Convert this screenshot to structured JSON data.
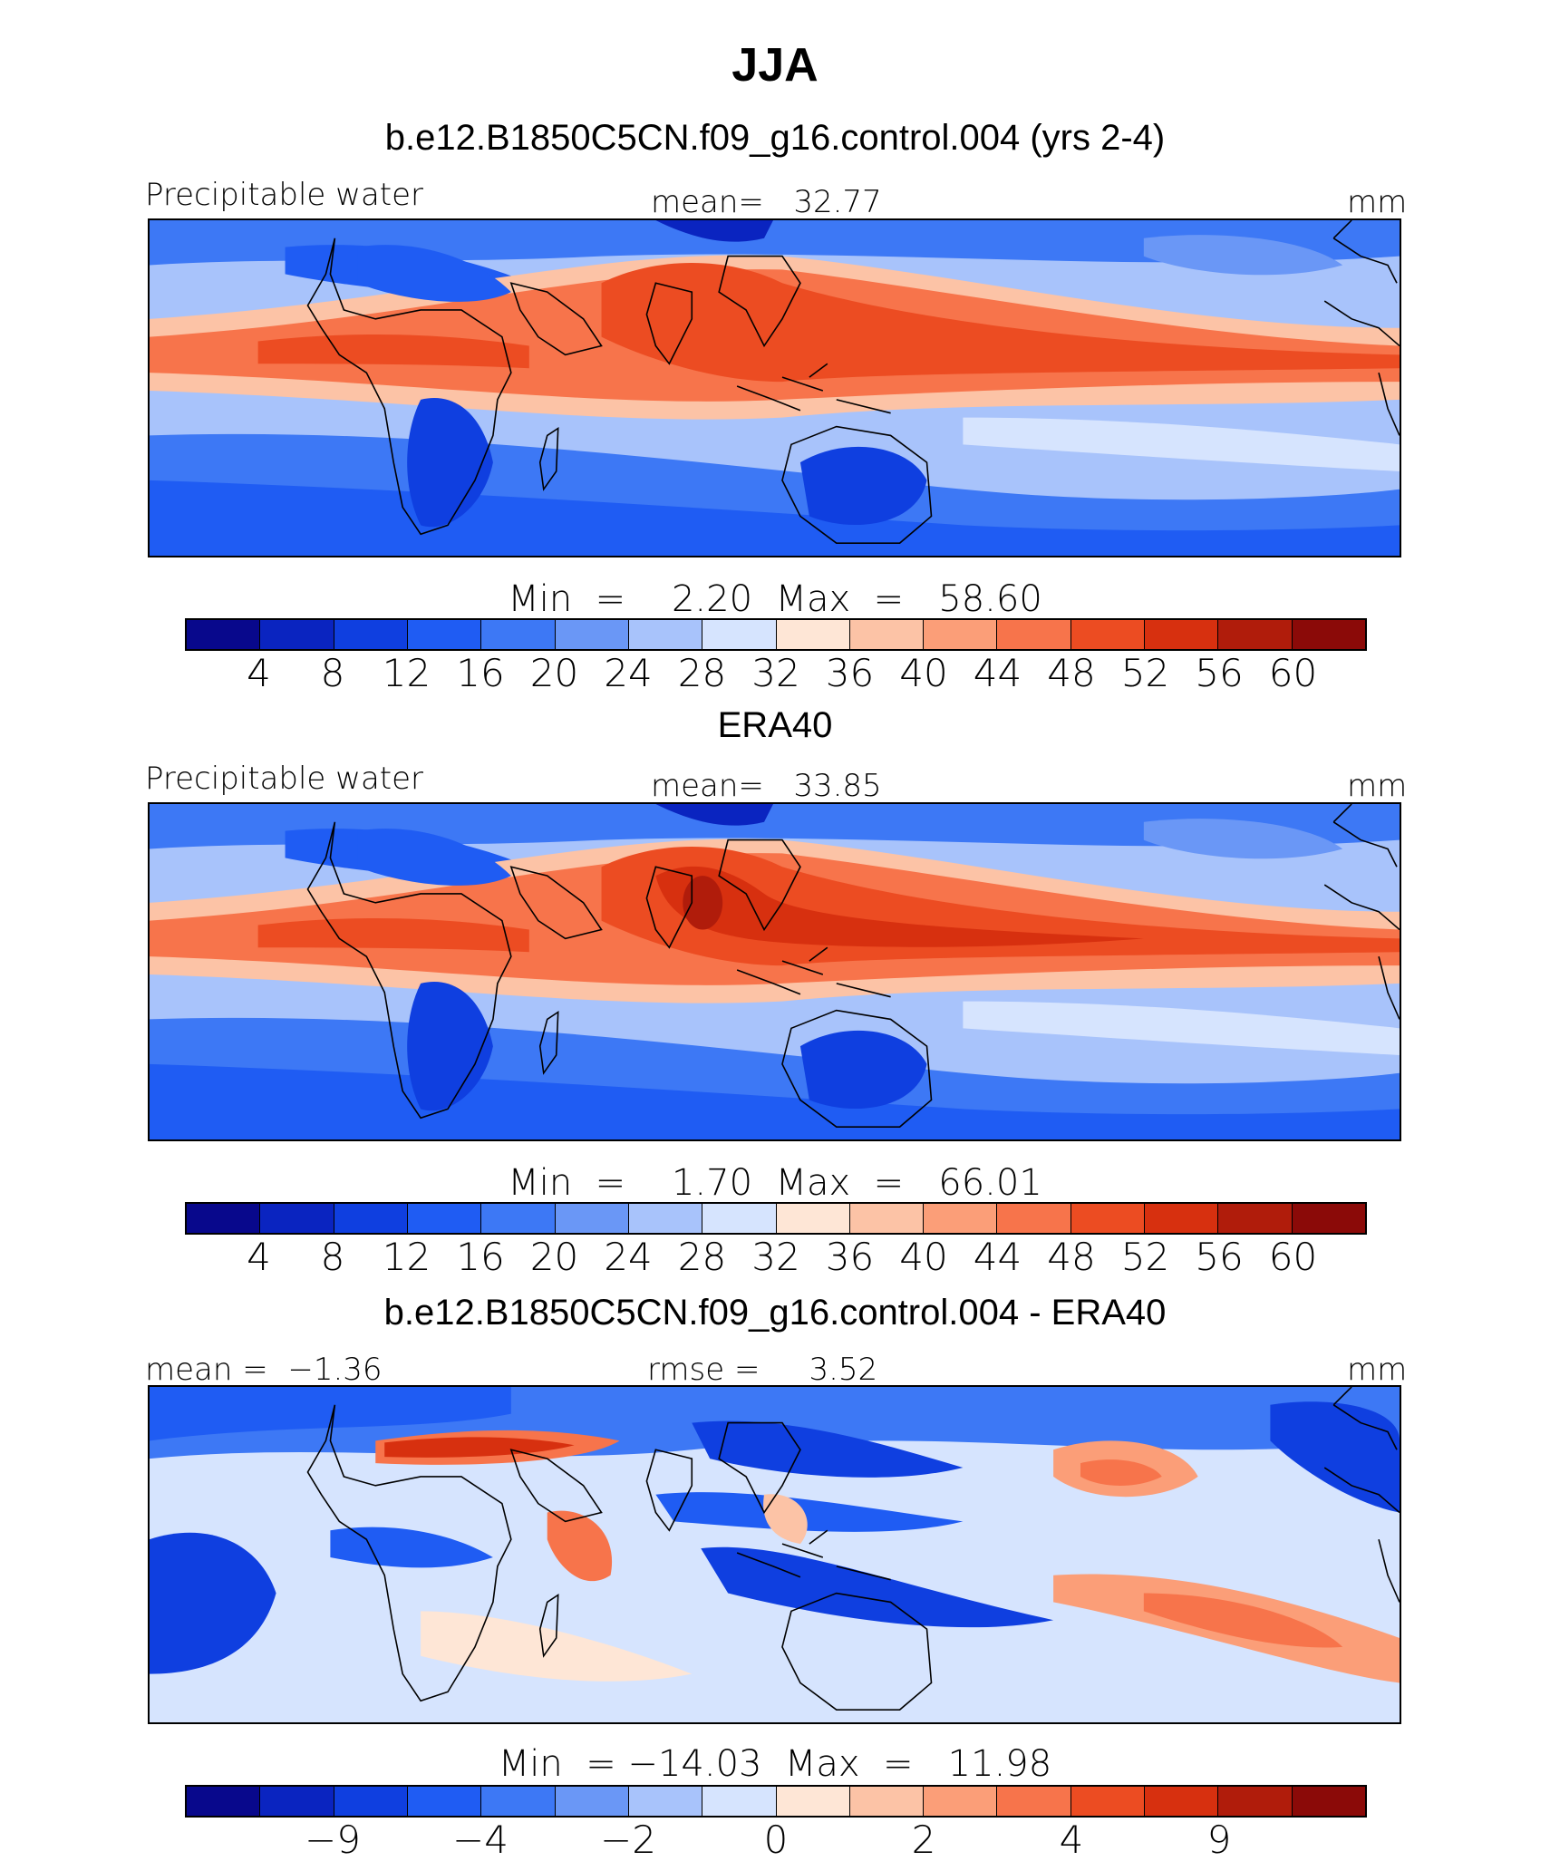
{
  "title": "JJA",
  "colors": [
    "#08088c",
    "#0a24c0",
    "#0f3fe0",
    "#1f5cf3",
    "#3d78f5",
    "#6a97f6",
    "#a8c3fb",
    "#d6e4fe",
    "#fee6d6",
    "#fcc3a6",
    "#fb9e78",
    "#f7744b",
    "#ec4c22",
    "#d7300f",
    "#b01c0b",
    "#8b0a08"
  ],
  "panels": [
    {
      "title": "b.e12.B1850C5CN.f09_g16.control.004 (yrs 2-4)",
      "left_label": "Precipitable water",
      "center_label": "mean=   32.77",
      "units": "mm",
      "minmax": "Min  =    2.20  Max  =   58.60",
      "ticks": [
        "4",
        "8",
        "12",
        "16",
        "20",
        "24",
        "28",
        "32",
        "36",
        "40",
        "44",
        "48",
        "52",
        "56",
        "60"
      ],
      "field": "model"
    },
    {
      "title": "ERA40",
      "left_label": "Precipitable water",
      "center_label": "mean=   33.85",
      "units": "mm",
      "minmax": "Min  =    1.70  Max  =   66.01",
      "ticks": [
        "4",
        "8",
        "12",
        "16",
        "20",
        "24",
        "28",
        "32",
        "36",
        "40",
        "44",
        "48",
        "52",
        "56",
        "60"
      ],
      "field": "obs"
    },
    {
      "title": "b.e12.B1850C5CN.f09_g16.control.004 - ERA40",
      "left_label": "mean =  −1.36",
      "center_label": "rmse =     3.52",
      "units": "mm",
      "minmax": "Min  = −14.03  Max  =   11.98",
      "ticks": [
        "−9",
        "−4",
        "−2",
        "0",
        "2",
        "4",
        "9"
      ],
      "field": "diff"
    }
  ]
}
